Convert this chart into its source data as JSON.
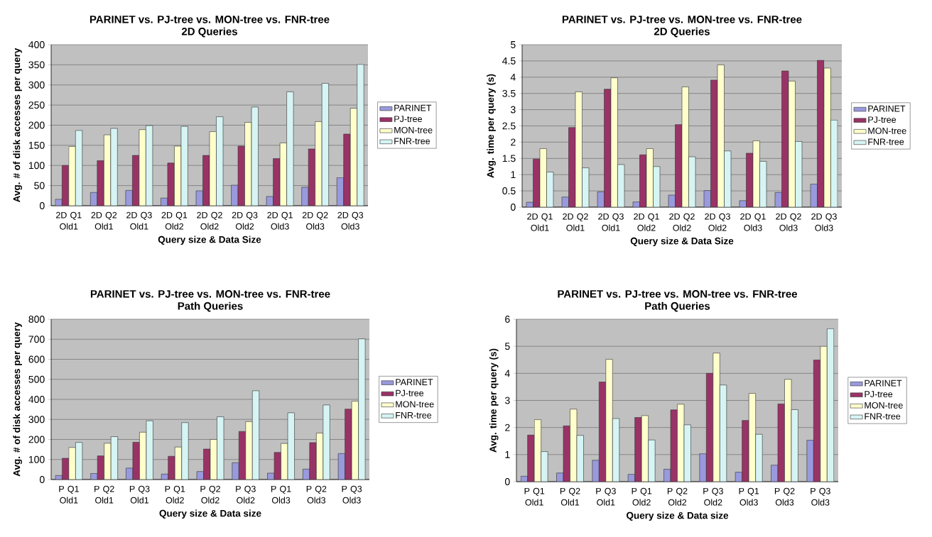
{
  "chart_data": [
    {
      "type": "bar",
      "title": "PARINET vs. PJ-tree vs. MON-tree vs. FNR-tree",
      "subtitle": "2D Queries",
      "xlabel": "Query size & Data Size",
      "ylabel": "Avg. # of disk accesses per query",
      "categories": [
        "2D Q1 Old1",
        "2D Q2 Old1",
        "2D Q3 Old1",
        "2D Q1 Old2",
        "2D Q2 Old2",
        "2D Q3 Old2",
        "2D Q1 Old3",
        "2D Q2 Old3",
        "2D Q3 Old3"
      ],
      "series": [
        {
          "name": "PARINET",
          "color": "#9999dd",
          "values": [
            16,
            33,
            38,
            19,
            37,
            51,
            23,
            46,
            70
          ]
        },
        {
          "name": "PJ-tree",
          "color": "#993366",
          "values": [
            100,
            112,
            125,
            106,
            125,
            148,
            117,
            141,
            178
          ]
        },
        {
          "name": "MON-tree",
          "color": "#ffffcc",
          "values": [
            147,
            176,
            189,
            148,
            184,
            207,
            156,
            209,
            242
          ]
        },
        {
          "name": "FNR-tree",
          "color": "#d6f4f4",
          "values": [
            187,
            192,
            199,
            197,
            221,
            245,
            283,
            304,
            351
          ]
        }
      ],
      "ylim": [
        0,
        400
      ],
      "yticks": [
        0,
        50,
        100,
        150,
        200,
        250,
        300,
        350,
        400
      ],
      "grid": "y",
      "legend": "right"
    },
    {
      "type": "bar",
      "title": "PARINET vs. PJ-tree vs. MON-tree vs. FNR-tree",
      "subtitle": "2D Queries",
      "xlabel": "Query size & Data Size",
      "ylabel": "Avg. time per query (s)",
      "categories": [
        "2D Q1 Old1",
        "2D Q2 Old1",
        "2D Q3 Old1",
        "2D Q1 Old2",
        "2D Q2 Old2",
        "2D Q3 Old2",
        "2D Q1 Old3",
        "2D Q2 Old3",
        "2D Q3 Old3"
      ],
      "series": [
        {
          "name": "PARINET",
          "color": "#9999dd",
          "values": [
            0.15,
            0.31,
            0.47,
            0.16,
            0.37,
            0.51,
            0.2,
            0.45,
            0.71
          ]
        },
        {
          "name": "PJ-tree",
          "color": "#993366",
          "values": [
            1.48,
            2.45,
            3.63,
            1.61,
            2.54,
            3.91,
            1.66,
            4.19,
            4.52
          ]
        },
        {
          "name": "MON-tree",
          "color": "#ffffcc",
          "values": [
            1.8,
            3.55,
            3.98,
            1.8,
            3.7,
            4.38,
            2.04,
            3.88,
            4.28
          ]
        },
        {
          "name": "FNR-tree",
          "color": "#d6f4f4",
          "values": [
            1.08,
            1.21,
            1.31,
            1.25,
            1.55,
            1.73,
            1.41,
            2.02,
            2.68
          ]
        }
      ],
      "ylim": [
        0,
        5
      ],
      "yticks": [
        0,
        0.5,
        1,
        1.5,
        2,
        2.5,
        3,
        3.5,
        4,
        4.5,
        5
      ],
      "grid": "y",
      "legend": "right"
    },
    {
      "type": "bar",
      "title": "PARINET vs. PJ-tree vs. MON-tree vs. FNR-tree",
      "subtitle": "Path Queries",
      "xlabel": "Query size & Data size",
      "ylabel": "Avg. # of disk accesses per query",
      "categories": [
        "P Q1 Old1",
        "P Q2 Old1",
        "P Q3 Old1",
        "P Q1 Old2",
        "P Q2 Old2",
        "P Q3 Old2",
        "P Q1 Old3",
        "P Q2 Old3",
        "P Q3 Old3"
      ],
      "series": [
        {
          "name": "PARINET",
          "color": "#9999dd",
          "values": [
            20,
            30,
            57,
            27,
            40,
            84,
            32,
            52,
            130
          ]
        },
        {
          "name": "PJ-tree",
          "color": "#993366",
          "values": [
            106,
            118,
            186,
            116,
            152,
            240,
            135,
            184,
            352
          ]
        },
        {
          "name": "MON-tree",
          "color": "#ffffcc",
          "values": [
            160,
            181,
            236,
            162,
            200,
            289,
            180,
            232,
            391
          ]
        },
        {
          "name": "FNR-tree",
          "color": "#d6f4f4",
          "values": [
            185,
            214,
            293,
            284,
            313,
            443,
            333,
            372,
            702
          ]
        }
      ],
      "ylim": [
        0,
        800
      ],
      "yticks": [
        0,
        100,
        200,
        300,
        400,
        500,
        600,
        700,
        800
      ],
      "grid": "y",
      "legend": "right"
    },
    {
      "type": "bar",
      "title": "PARINET vs. PJ-tree vs. MON-tree vs. FNR-tree",
      "subtitle": "Path Queries",
      "xlabel": "Query size & Data size",
      "ylabel": "Avg. time per query (s)",
      "categories": [
        "P Q1 Old1",
        "P Q2 Old1",
        "P Q3 Old1",
        "P Q1 Old2",
        "P Q2 Old2",
        "P Q3 Old2",
        "P Q1 Old3",
        "P Q2 Old3",
        "P Q3 Old3"
      ],
      "series": [
        {
          "name": "PARINET",
          "color": "#9999dd",
          "values": [
            0.2,
            0.32,
            0.79,
            0.27,
            0.46,
            1.03,
            0.35,
            0.61,
            1.53
          ]
        },
        {
          "name": "PJ-tree",
          "color": "#993366",
          "values": [
            1.72,
            2.06,
            3.68,
            2.37,
            2.65,
            4.0,
            2.26,
            2.87,
            4.5
          ]
        },
        {
          "name": "MON-tree",
          "color": "#ffffcc",
          "values": [
            2.29,
            2.68,
            4.52,
            2.44,
            2.86,
            4.75,
            3.26,
            3.78,
            5.0
          ]
        },
        {
          "name": "FNR-tree",
          "color": "#d6f4f4",
          "values": [
            1.11,
            1.71,
            2.33,
            1.54,
            2.1,
            3.57,
            1.75,
            2.66,
            5.65
          ]
        }
      ],
      "ylim": [
        0,
        6
      ],
      "yticks": [
        0,
        1,
        2,
        3,
        4,
        5,
        6
      ],
      "grid": "y",
      "legend": "right"
    }
  ]
}
